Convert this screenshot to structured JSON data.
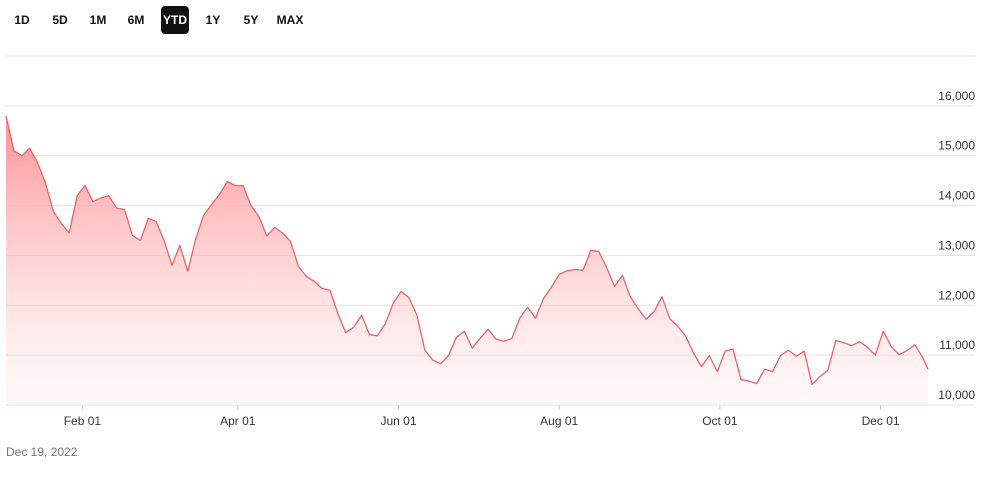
{
  "range_buttons": {
    "labels": [
      "1D",
      "5D",
      "1M",
      "6M",
      "YTD",
      "1Y",
      "5Y",
      "MAX"
    ],
    "active": 4
  },
  "footer_date": "Dec 19, 2022",
  "chart_data": {
    "type": "area",
    "color": "#e5646c",
    "grid": true,
    "xlim": [
      "2022-01-03",
      "2022-12-19"
    ],
    "xticks": [
      {
        "value": "2022-02-01",
        "label": "Feb 01"
      },
      {
        "value": "2022-04-01",
        "label": "Apr 01"
      },
      {
        "value": "2022-06-01",
        "label": "Jun 01"
      },
      {
        "value": "2022-08-01",
        "label": "Aug 01"
      },
      {
        "value": "2022-10-01",
        "label": "Oct 01"
      },
      {
        "value": "2022-12-01",
        "label": "Dec 01"
      }
    ],
    "ylim": [
      10000,
      17000
    ],
    "yticks": [
      {
        "value": 10000,
        "label": "10,000"
      },
      {
        "value": 11000,
        "label": "11,000"
      },
      {
        "value": 12000,
        "label": "12,000"
      },
      {
        "value": 13000,
        "label": "13,000"
      },
      {
        "value": 14000,
        "label": "14,000"
      },
      {
        "value": 15000,
        "label": "15,000"
      },
      {
        "value": 16000,
        "label": "16,000"
      }
    ],
    "x": [
      "2022-01-03",
      "2022-01-06",
      "2022-01-09",
      "2022-01-12",
      "2022-01-15",
      "2022-01-18",
      "2022-01-21",
      "2022-01-24",
      "2022-01-27",
      "2022-01-30",
      "2022-02-02",
      "2022-02-05",
      "2022-02-08",
      "2022-02-11",
      "2022-02-14",
      "2022-02-17",
      "2022-02-20",
      "2022-02-23",
      "2022-02-26",
      "2022-03-01",
      "2022-03-04",
      "2022-03-07",
      "2022-03-10",
      "2022-03-13",
      "2022-03-16",
      "2022-03-19",
      "2022-03-22",
      "2022-03-25",
      "2022-03-28",
      "2022-03-31",
      "2022-04-03",
      "2022-04-06",
      "2022-04-09",
      "2022-04-12",
      "2022-04-15",
      "2022-04-18",
      "2022-04-21",
      "2022-04-24",
      "2022-04-27",
      "2022-04-30",
      "2022-05-03",
      "2022-05-06",
      "2022-05-09",
      "2022-05-12",
      "2022-05-15",
      "2022-05-18",
      "2022-05-21",
      "2022-05-24",
      "2022-05-27",
      "2022-05-30",
      "2022-06-02",
      "2022-06-05",
      "2022-06-08",
      "2022-06-11",
      "2022-06-14",
      "2022-06-17",
      "2022-06-20",
      "2022-06-23",
      "2022-06-26",
      "2022-06-29",
      "2022-07-02",
      "2022-07-05",
      "2022-07-08",
      "2022-07-11",
      "2022-07-14",
      "2022-07-17",
      "2022-07-20",
      "2022-07-23",
      "2022-07-26",
      "2022-07-29",
      "2022-08-01",
      "2022-08-04",
      "2022-08-07",
      "2022-08-10",
      "2022-08-13",
      "2022-08-16",
      "2022-08-19",
      "2022-08-22",
      "2022-08-25",
      "2022-08-28",
      "2022-08-31",
      "2022-09-03",
      "2022-09-06",
      "2022-09-09",
      "2022-09-12",
      "2022-09-15",
      "2022-09-18",
      "2022-09-21",
      "2022-09-24",
      "2022-09-27",
      "2022-09-30",
      "2022-10-03",
      "2022-10-06",
      "2022-10-09",
      "2022-10-12",
      "2022-10-15",
      "2022-10-18",
      "2022-10-21",
      "2022-10-24",
      "2022-10-27",
      "2022-10-30",
      "2022-11-02",
      "2022-11-05",
      "2022-11-08",
      "2022-11-11",
      "2022-11-14",
      "2022-11-17",
      "2022-11-20",
      "2022-11-23",
      "2022-11-26",
      "2022-11-29",
      "2022-12-02",
      "2022-12-05",
      "2022-12-08",
      "2022-12-11",
      "2022-12-14",
      "2022-12-17",
      "2022-12-19"
    ],
    "values": [
      15800,
      15100,
      15000,
      15150,
      14860,
      14450,
      13880,
      13640,
      13450,
      14200,
      14400,
      14080,
      14150,
      14200,
      13950,
      13920,
      13400,
      13300,
      13740,
      13680,
      13300,
      12800,
      13200,
      12680,
      13330,
      13800,
      14020,
      14220,
      14480,
      14400,
      14400,
      14000,
      13780,
      13390,
      13560,
      13450,
      13280,
      12780,
      12580,
      12480,
      12340,
      12300,
      11830,
      11450,
      11560,
      11800,
      11410,
      11390,
      11630,
      12040,
      12280,
      12150,
      11800,
      11100,
      10900,
      10830,
      10990,
      11360,
      11480,
      11140,
      11340,
      11520,
      11320,
      11280,
      11330,
      11740,
      11960,
      11740,
      12130,
      12360,
      12620,
      12690,
      12720,
      12700,
      13100,
      13080,
      12760,
      12380,
      12600,
      12170,
      11930,
      11720,
      11870,
      12170,
      11730,
      11580,
      11380,
      11040,
      10770,
      10990,
      10670,
      11080,
      11120,
      10510,
      10480,
      10430,
      10720,
      10670,
      10990,
      11100,
      10980,
      11080,
      10410,
      10570,
      10700,
      11290,
      11250,
      11190,
      11270,
      11160,
      11000,
      11480,
      11180,
      11010,
      11090,
      11210,
      10950,
      10720
    ]
  }
}
